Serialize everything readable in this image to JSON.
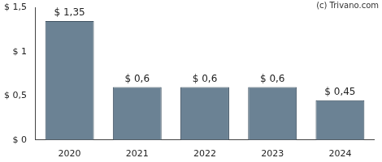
{
  "chart_data": {
    "type": "bar",
    "categories": [
      "2020",
      "2021",
      "2022",
      "2023",
      "2024"
    ],
    "values": [
      1.35,
      0.6,
      0.6,
      0.6,
      0.45
    ],
    "value_labels": [
      "$ 1,35",
      "$ 0,6",
      "$ 0,6",
      "$ 0,6",
      "$ 0,45"
    ],
    "data_labels": true,
    "color": "#6b8294",
    "ylim": [
      0,
      1.5
    ],
    "yticks": [
      {
        "value": 0,
        "label": "$ 0"
      },
      {
        "value": 0.5,
        "label": "$ 0,5"
      },
      {
        "value": 1,
        "label": "$ 1"
      },
      {
        "value": 1.5,
        "label": "$ 1,5"
      }
    ],
    "grid": false,
    "annotations": [
      "(c) Trivano.com"
    ]
  }
}
